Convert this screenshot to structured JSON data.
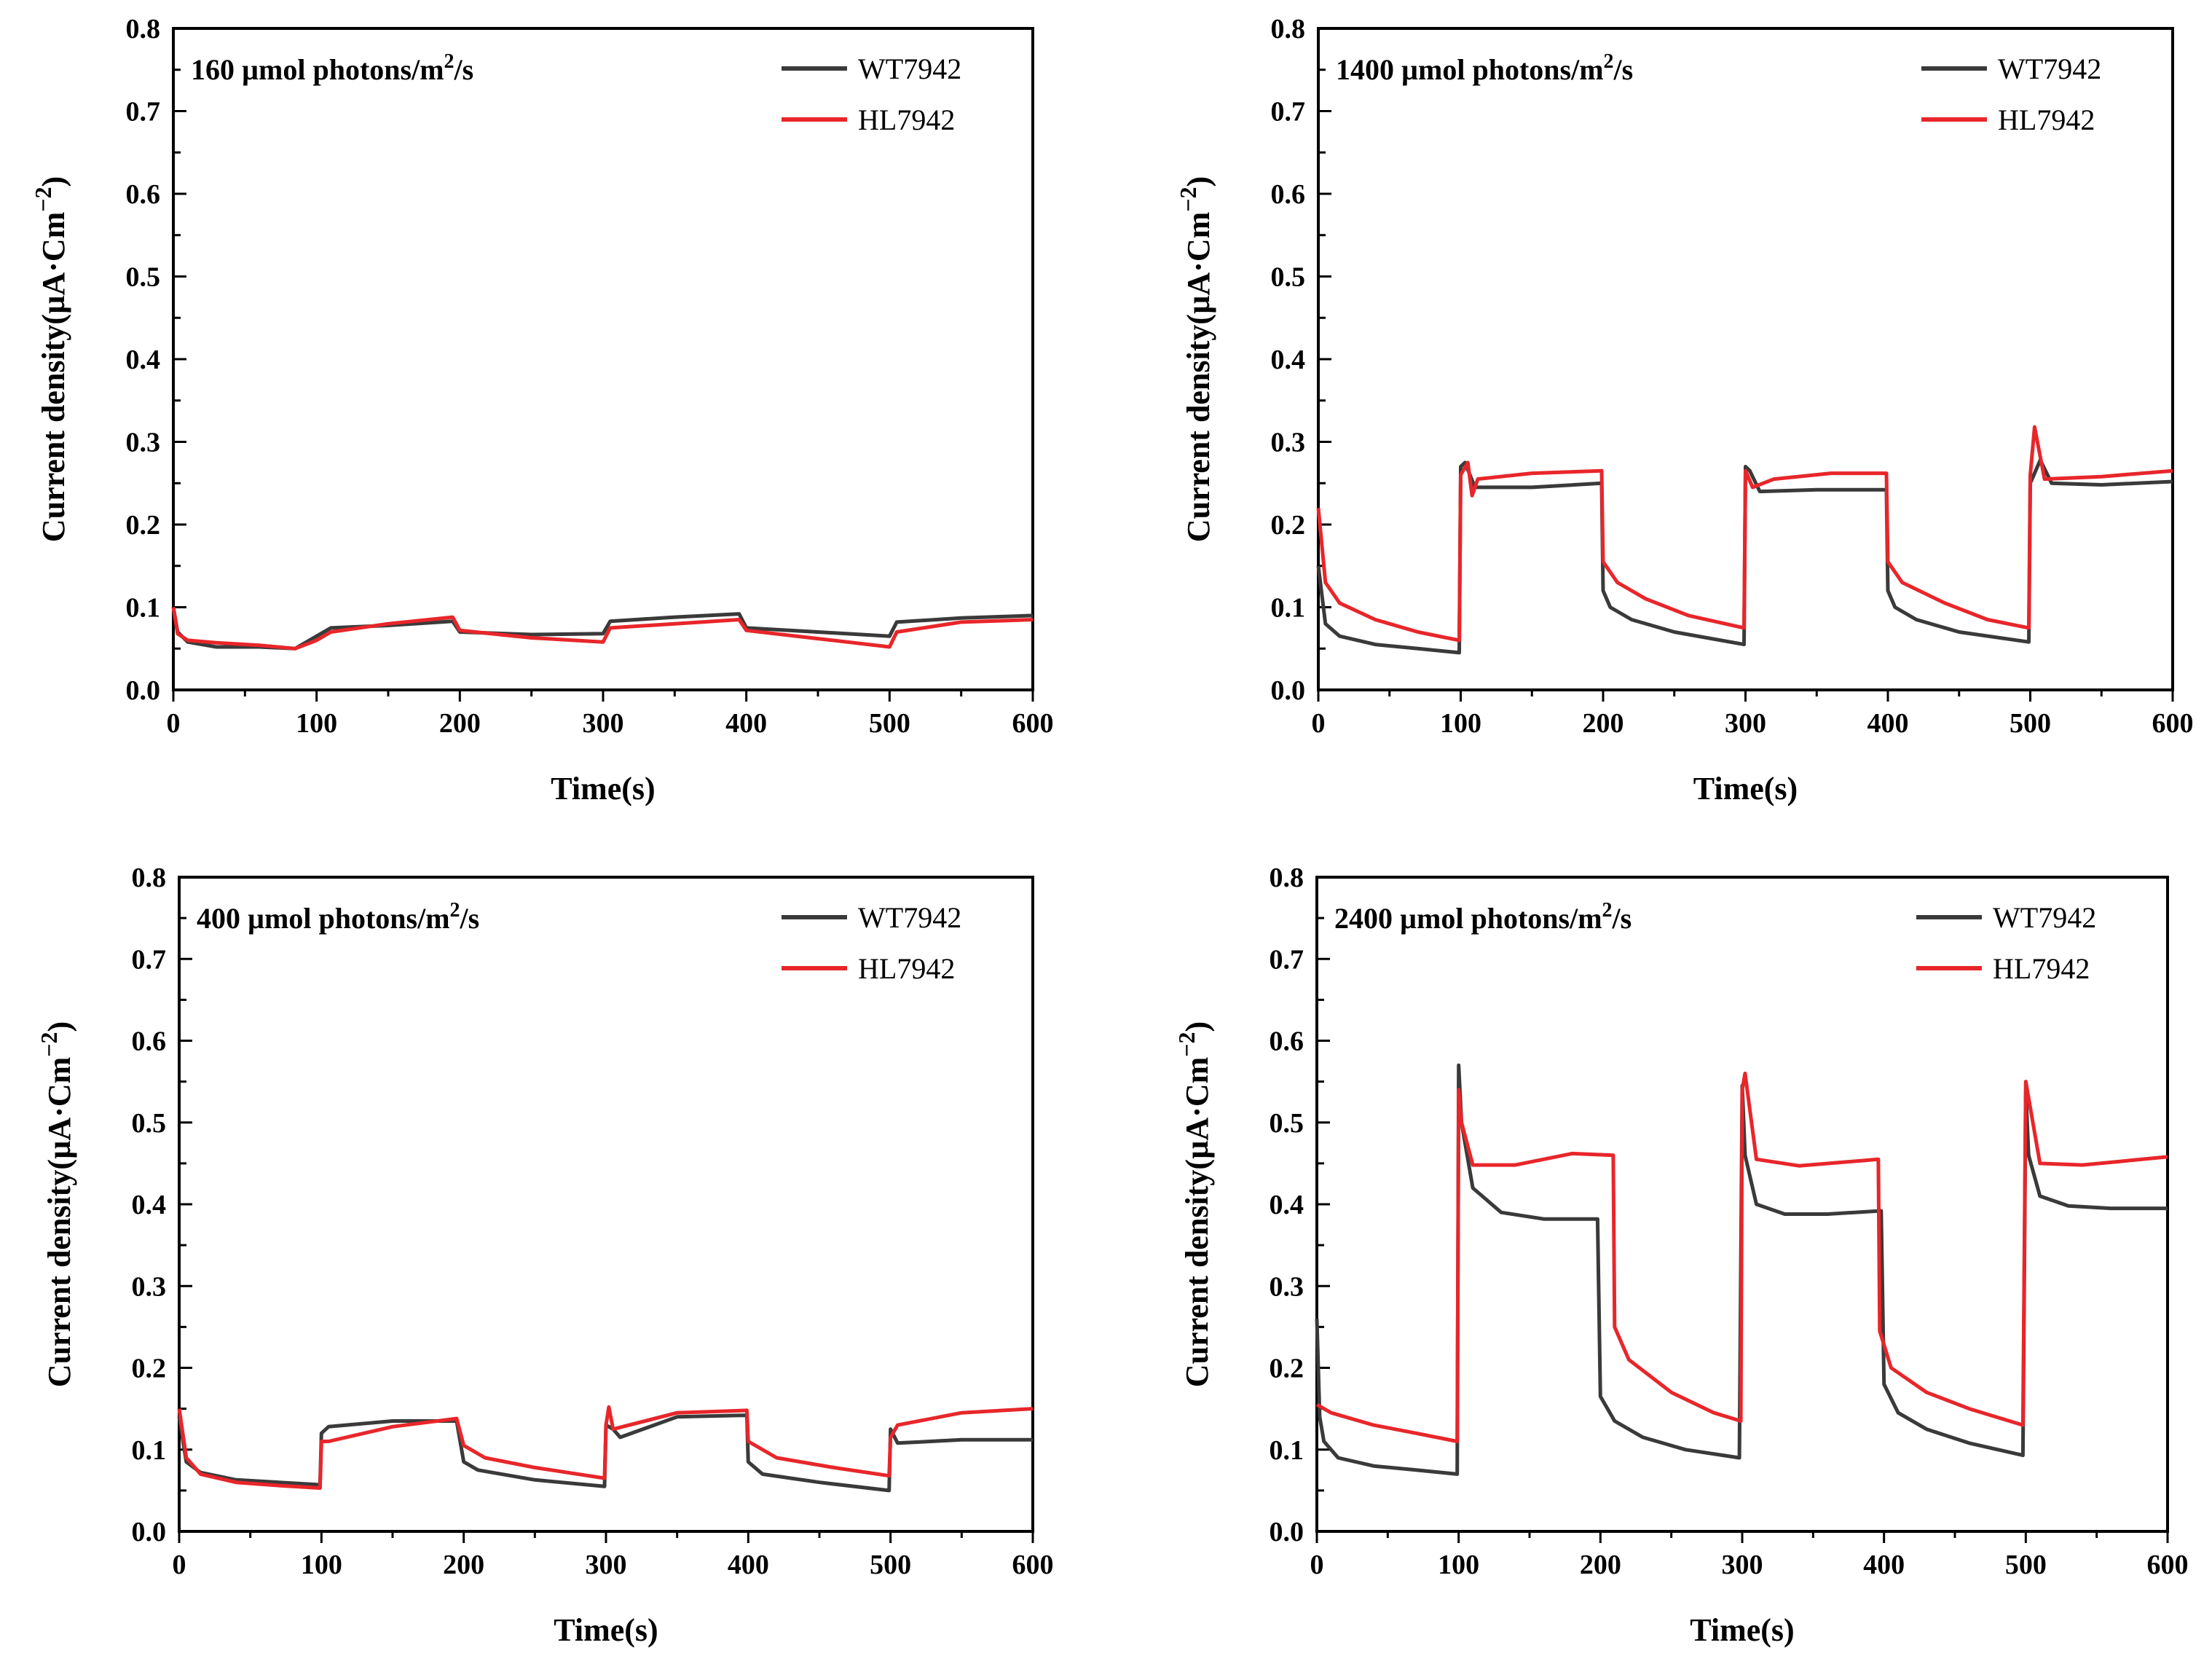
{
  "colors": {
    "wt": "#3a3a3a",
    "hl": "#e8262a",
    "axis": "#000000"
  },
  "chart_data": [
    {
      "type": "line",
      "title_main": "160 µmol photons/m",
      "title_sup": "2",
      "title_tail": "/s",
      "xlabel": "Time(s)",
      "ylabel": "Current density(µA·Cm",
      "ylabel_sup": "−2",
      "ylabel_tail": ")",
      "xlim": [
        0,
        600
      ],
      "ylim": [
        0,
        0.8
      ],
      "xticks": [
        "0",
        "100",
        "200",
        "300",
        "400",
        "500",
        "600"
      ],
      "yticks": [
        "0.0",
        "0.1",
        "0.2",
        "0.3",
        "0.4",
        "0.5",
        "0.6",
        "0.7",
        "0.8"
      ],
      "legend_position": "top-right",
      "series": [
        {
          "name": "WT7942",
          "color": "#3a3a3a",
          "x": [
            0,
            3,
            10,
            30,
            60,
            85,
            100,
            110,
            150,
            195,
            200,
            250,
            300,
            305,
            350,
            395,
            400,
            450,
            500,
            505,
            550,
            600
          ],
          "y": [
            0.1,
            0.07,
            0.058,
            0.052,
            0.052,
            0.05,
            0.065,
            0.075,
            0.078,
            0.083,
            0.07,
            0.067,
            0.068,
            0.083,
            0.088,
            0.092,
            0.075,
            0.07,
            0.065,
            0.082,
            0.087,
            0.09
          ]
        },
        {
          "name": "HL7942",
          "color": "#e8262a",
          "x": [
            0,
            3,
            10,
            30,
            60,
            85,
            100,
            110,
            150,
            195,
            200,
            250,
            300,
            305,
            350,
            395,
            400,
            450,
            500,
            505,
            550,
            600
          ],
          "y": [
            0.1,
            0.068,
            0.06,
            0.057,
            0.054,
            0.05,
            0.06,
            0.07,
            0.08,
            0.088,
            0.072,
            0.063,
            0.058,
            0.075,
            0.08,
            0.085,
            0.072,
            0.062,
            0.052,
            0.07,
            0.082,
            0.085
          ]
        }
      ]
    },
    {
      "type": "line",
      "title_main": "1400 µmol photons/m",
      "title_sup": "2",
      "title_tail": "/s",
      "xlabel": "Time(s)",
      "ylabel": "Current density(µA·Cm",
      "ylabel_sup": "−2",
      "ylabel_tail": ")",
      "xlim": [
        0,
        600
      ],
      "ylim": [
        0,
        0.8
      ],
      "xticks": [
        "0",
        "100",
        "200",
        "300",
        "400",
        "500",
        "600"
      ],
      "yticks": [
        "0.0",
        "0.1",
        "0.2",
        "0.3",
        "0.4",
        "0.5",
        "0.6",
        "0.7",
        "0.8"
      ],
      "legend_position": "top-right",
      "series": [
        {
          "name": "WT7942",
          "color": "#3a3a3a",
          "x": [
            0,
            5,
            15,
            40,
            70,
            99,
            100,
            103,
            110,
            150,
            199,
            200,
            205,
            220,
            250,
            299,
            300,
            303,
            310,
            350,
            399,
            400,
            405,
            420,
            450,
            499,
            500,
            507,
            515,
            550,
            600
          ],
          "y": [
            0.15,
            0.08,
            0.065,
            0.055,
            0.05,
            0.045,
            0.27,
            0.275,
            0.245,
            0.245,
            0.25,
            0.12,
            0.1,
            0.085,
            0.07,
            0.055,
            0.27,
            0.265,
            0.24,
            0.242,
            0.242,
            0.12,
            0.1,
            0.085,
            0.07,
            0.058,
            0.25,
            0.278,
            0.25,
            0.248,
            0.252
          ]
        },
        {
          "name": "HL7942",
          "color": "#e8262a",
          "x": [
            0,
            5,
            15,
            40,
            70,
            99,
            100,
            105,
            108,
            112,
            150,
            199,
            200,
            210,
            230,
            260,
            299,
            300,
            305,
            320,
            360,
            399,
            400,
            410,
            440,
            470,
            499,
            500,
            503,
            510,
            550,
            600
          ],
          "y": [
            0.22,
            0.13,
            0.105,
            0.085,
            0.07,
            0.06,
            0.26,
            0.275,
            0.235,
            0.255,
            0.262,
            0.265,
            0.155,
            0.13,
            0.11,
            0.09,
            0.075,
            0.265,
            0.245,
            0.255,
            0.262,
            0.262,
            0.155,
            0.13,
            0.105,
            0.085,
            0.075,
            0.26,
            0.318,
            0.255,
            0.258,
            0.265
          ]
        }
      ]
    },
    {
      "type": "line",
      "title_main": "400 µmol photons/m",
      "title_sup": "2",
      "title_tail": "/s",
      "xlabel": "Time(s)",
      "ylabel": "Current density(µA·Cm",
      "ylabel_sup": "−2",
      "ylabel_tail": ")",
      "xlim": [
        0,
        600
      ],
      "ylim": [
        0,
        0.8
      ],
      "xticks": [
        "0",
        "100",
        "200",
        "300",
        "400",
        "500",
        "600"
      ],
      "yticks": [
        "0.0",
        "0.1",
        "0.2",
        "0.3",
        "0.4",
        "0.5",
        "0.6",
        "0.7",
        "0.8"
      ],
      "legend_position": "top-right",
      "series": [
        {
          "name": "WT7942",
          "color": "#3a3a3a",
          "x": [
            0,
            5,
            15,
            40,
            70,
            99,
            100,
            105,
            150,
            195,
            200,
            210,
            250,
            299,
            300,
            305,
            310,
            350,
            399,
            400,
            410,
            450,
            499,
            500,
            505,
            550,
            600
          ],
          "y": [
            0.14,
            0.085,
            0.072,
            0.063,
            0.06,
            0.057,
            0.12,
            0.128,
            0.135,
            0.135,
            0.085,
            0.075,
            0.063,
            0.055,
            0.13,
            0.125,
            0.115,
            0.14,
            0.142,
            0.085,
            0.07,
            0.06,
            0.05,
            0.125,
            0.108,
            0.112,
            0.112
          ]
        },
        {
          "name": "HL7942",
          "color": "#e8262a",
          "x": [
            0,
            5,
            15,
            40,
            70,
            99,
            100,
            105,
            150,
            195,
            200,
            215,
            250,
            299,
            300,
            302,
            305,
            350,
            399,
            400,
            420,
            460,
            499,
            500,
            505,
            550,
            600
          ],
          "y": [
            0.15,
            0.09,
            0.07,
            0.06,
            0.056,
            0.053,
            0.11,
            0.11,
            0.128,
            0.138,
            0.105,
            0.09,
            0.078,
            0.065,
            0.13,
            0.152,
            0.125,
            0.145,
            0.148,
            0.11,
            0.09,
            0.078,
            0.068,
            0.115,
            0.13,
            0.145,
            0.15
          ]
        }
      ]
    },
    {
      "type": "line",
      "title_main": "2400 µmol photons/m",
      "title_sup": "2",
      "title_tail": "/s",
      "xlabel": "Time(s)",
      "ylabel": "Current density(µA·Cm",
      "ylabel_sup": "−2",
      "ylabel_tail": ")",
      "xlim": [
        0,
        600
      ],
      "ylim": [
        0,
        0.8
      ],
      "xticks": [
        "0",
        "100",
        "200",
        "300",
        "400",
        "500",
        "600"
      ],
      "yticks": [
        "0.0",
        "0.1",
        "0.2",
        "0.3",
        "0.4",
        "0.5",
        "0.6",
        "0.7",
        "0.8"
      ],
      "legend_position": "top-right",
      "series": [
        {
          "name": "WT7942",
          "color": "#3a3a3a",
          "x": [
            0,
            2,
            5,
            15,
            40,
            70,
            99,
            100,
            102,
            110,
            130,
            160,
            198,
            200,
            210,
            230,
            260,
            298,
            300,
            302,
            310,
            330,
            360,
            398,
            400,
            410,
            430,
            460,
            498,
            500,
            502,
            510,
            530,
            560,
            600
          ],
          "y": [
            0.26,
            0.14,
            0.11,
            0.09,
            0.08,
            0.075,
            0.07,
            0.57,
            0.5,
            0.42,
            0.39,
            0.382,
            0.382,
            0.165,
            0.135,
            0.115,
            0.1,
            0.09,
            0.545,
            0.46,
            0.4,
            0.388,
            0.388,
            0.392,
            0.18,
            0.145,
            0.125,
            0.108,
            0.093,
            0.54,
            0.46,
            0.41,
            0.398,
            0.395,
            0.395
          ]
        },
        {
          "name": "HL7942",
          "color": "#e8262a",
          "x": [
            0,
            10,
            40,
            70,
            99,
            100,
            102,
            110,
            140,
            180,
            209,
            210,
            220,
            250,
            280,
            299,
            300,
            302,
            310,
            340,
            396,
            397,
            405,
            430,
            460,
            498,
            500,
            502,
            510,
            540,
            600
          ],
          "y": [
            0.155,
            0.145,
            0.13,
            0.12,
            0.11,
            0.54,
            0.5,
            0.448,
            0.448,
            0.462,
            0.46,
            0.25,
            0.21,
            0.17,
            0.145,
            0.135,
            0.54,
            0.56,
            0.455,
            0.447,
            0.455,
            0.245,
            0.2,
            0.17,
            0.15,
            0.13,
            0.55,
            0.53,
            0.45,
            0.448,
            0.458
          ]
        }
      ]
    }
  ]
}
